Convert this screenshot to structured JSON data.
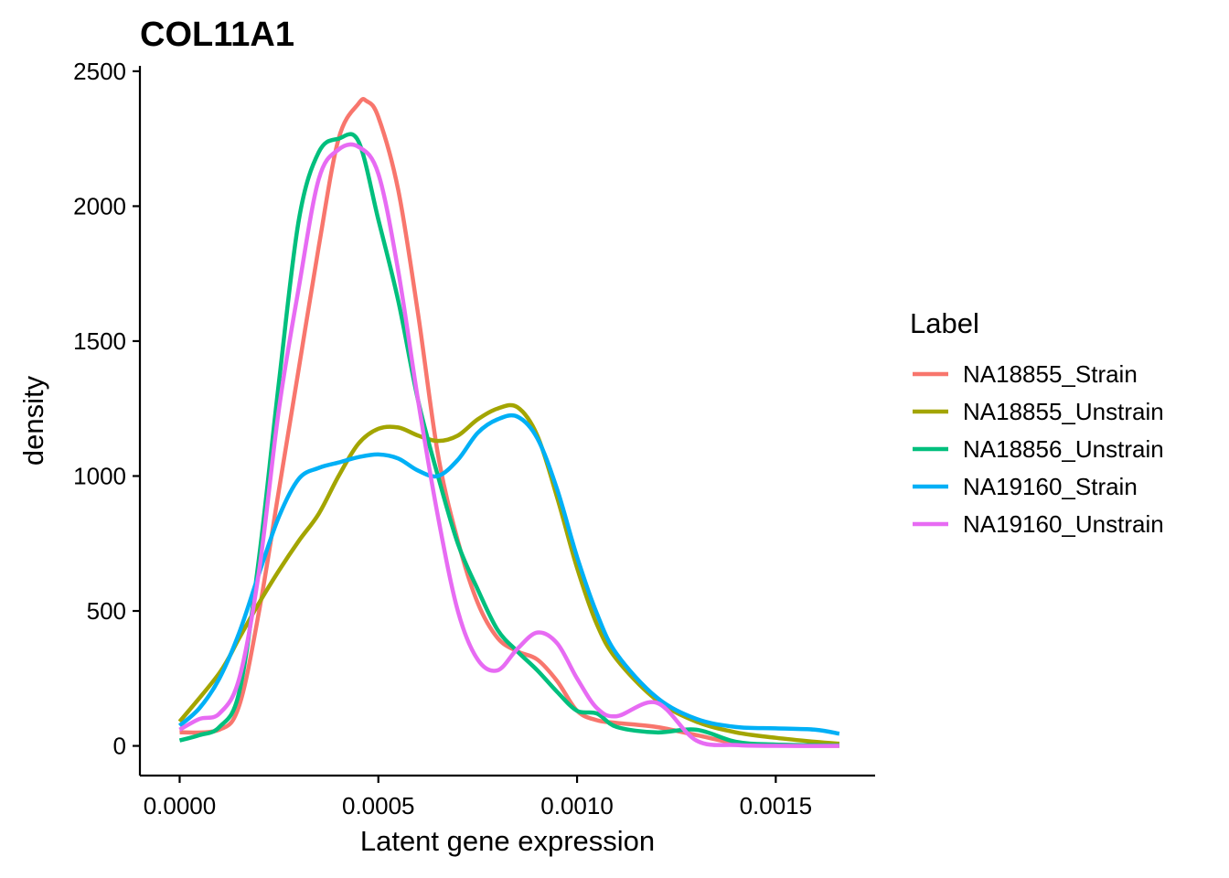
{
  "chart_data": {
    "type": "line",
    "title": "COL11A1",
    "xlabel": "Latent gene expression",
    "ylabel": "density",
    "xlim": [
      -0.0001,
      0.00175
    ],
    "ylim": [
      -110,
      2520
    ],
    "x_ticks": [
      0,
      0.0005,
      0.001,
      0.0015
    ],
    "x_tick_labels": [
      "0.0000",
      "0.0005",
      "0.0010",
      "0.0015"
    ],
    "y_ticks": [
      0,
      500,
      1000,
      1500,
      2000,
      2500
    ],
    "y_tick_labels": [
      "0",
      "500",
      "1000",
      "1500",
      "2000",
      "2500"
    ],
    "grid": false,
    "legend": {
      "title": "Label",
      "position": "right"
    },
    "series": [
      {
        "name": "NA18855_Strain",
        "color": "#F8766D",
        "x": [
          0,
          0.0001,
          0.00015,
          0.0002,
          0.00025,
          0.0003,
          0.00035,
          0.0004,
          0.00045,
          0.00047,
          0.0005,
          0.00055,
          0.0006,
          0.00065,
          0.0007,
          0.00075,
          0.0008,
          0.00085,
          0.0009,
          0.00095,
          0.001,
          0.00105,
          0.0011,
          0.0012,
          0.0013,
          0.0014,
          0.0015,
          0.00166
        ],
        "y": [
          50,
          60,
          150,
          500,
          950,
          1400,
          1850,
          2250,
          2380,
          2390,
          2330,
          2060,
          1600,
          1080,
          760,
          530,
          400,
          350,
          320,
          240,
          130,
          95,
          85,
          70,
          40,
          10,
          2,
          0
        ]
      },
      {
        "name": "NA18855_Unstrain",
        "color": "#A3A500",
        "x": [
          0,
          0.0001,
          0.00015,
          0.0002,
          0.00025,
          0.0003,
          0.00035,
          0.0004,
          0.00045,
          0.0005,
          0.00055,
          0.0006,
          0.00065,
          0.0007,
          0.00075,
          0.0008,
          0.00085,
          0.0009,
          0.00095,
          0.001,
          0.00105,
          0.0011,
          0.0012,
          0.0013,
          0.0014,
          0.0015,
          0.0016,
          0.00166
        ],
        "y": [
          90,
          270,
          400,
          530,
          650,
          760,
          860,
          1000,
          1120,
          1175,
          1180,
          1150,
          1130,
          1150,
          1210,
          1250,
          1255,
          1150,
          920,
          660,
          450,
          320,
          170,
          90,
          50,
          30,
          15,
          8
        ]
      },
      {
        "name": "NA18856_Unstrain",
        "color": "#00BF7D",
        "x": [
          0,
          5e-05,
          0.0001,
          0.00015,
          0.0002,
          0.00025,
          0.0003,
          0.00035,
          0.0004,
          0.00045,
          0.0005,
          0.00055,
          0.0006,
          0.00065,
          0.0007,
          0.00075,
          0.0008,
          0.00085,
          0.0009,
          0.00095,
          0.001,
          0.00105,
          0.0011,
          0.0012,
          0.0013,
          0.0014,
          0.0015,
          0.00166
        ],
        "y": [
          20,
          40,
          70,
          200,
          700,
          1350,
          1950,
          2200,
          2250,
          2240,
          1950,
          1650,
          1280,
          1000,
          750,
          580,
          430,
          350,
          280,
          200,
          130,
          120,
          70,
          50,
          60,
          15,
          5,
          2
        ]
      },
      {
        "name": "NA19160_Strain",
        "color": "#00B0F6",
        "x": [
          0,
          5e-05,
          0.0001,
          0.00015,
          0.0002,
          0.00025,
          0.0003,
          0.00035,
          0.0004,
          0.00045,
          0.0005,
          0.00055,
          0.0006,
          0.00065,
          0.0007,
          0.00075,
          0.0008,
          0.00085,
          0.0009,
          0.00095,
          0.001,
          0.00105,
          0.0011,
          0.0012,
          0.0013,
          0.0014,
          0.0015,
          0.0016,
          0.00166
        ],
        "y": [
          75,
          140,
          250,
          420,
          640,
          850,
          990,
          1030,
          1050,
          1070,
          1080,
          1065,
          1020,
          1000,
          1060,
          1160,
          1210,
          1220,
          1140,
          950,
          700,
          490,
          340,
          180,
          100,
          70,
          65,
          60,
          45
        ]
      },
      {
        "name": "NA19160_Unstrain",
        "color": "#E76BF3",
        "x": [
          0,
          5e-05,
          0.0001,
          0.00015,
          0.0002,
          0.00025,
          0.0003,
          0.00035,
          0.0004,
          0.00045,
          0.0005,
          0.00055,
          0.0006,
          0.00065,
          0.0007,
          0.00075,
          0.0008,
          0.00085,
          0.0009,
          0.00095,
          0.001,
          0.00105,
          0.0011,
          0.0012,
          0.0013,
          0.0014,
          0.0015,
          0.00166
        ],
        "y": [
          60,
          100,
          120,
          250,
          650,
          1250,
          1700,
          2100,
          2210,
          2220,
          2120,
          1760,
          1280,
          850,
          500,
          320,
          280,
          360,
          420,
          380,
          250,
          140,
          110,
          160,
          20,
          3,
          0,
          0
        ]
      }
    ]
  }
}
